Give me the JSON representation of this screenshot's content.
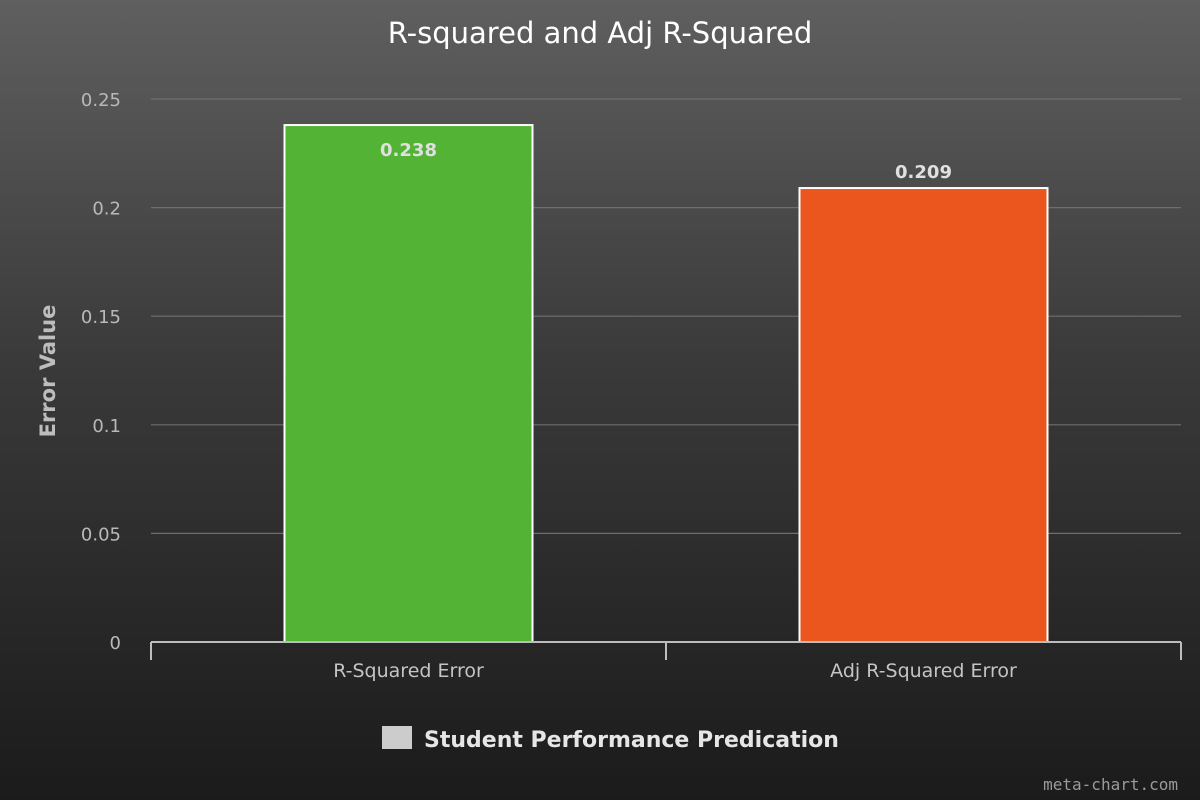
{
  "chart_data": {
    "type": "bar",
    "title": "R-squared and Adj R-Squared",
    "ylabel": "Error Value",
    "xlabel": "",
    "categories": [
      "R-Squared Error",
      "Adj R-Squared Error"
    ],
    "series": [
      {
        "name": "Student Performance Predication",
        "values": [
          0.238,
          0.209
        ],
        "data_labels": [
          "0.238",
          "0.209"
        ]
      }
    ],
    "bar_colors": [
      "#52b334",
      "#eb561e"
    ],
    "legend_color": "#cccccc",
    "ylim": [
      0,
      0.25
    ],
    "yticks": [
      0,
      0.05,
      0.1,
      0.15,
      0.2,
      0.25
    ],
    "ytick_labels": [
      "0",
      "0.05",
      "0.1",
      "0.15",
      "0.2",
      "0.25"
    ],
    "grid": true,
    "legend_position": "bottom-center"
  },
  "watermark": "meta-chart.com"
}
